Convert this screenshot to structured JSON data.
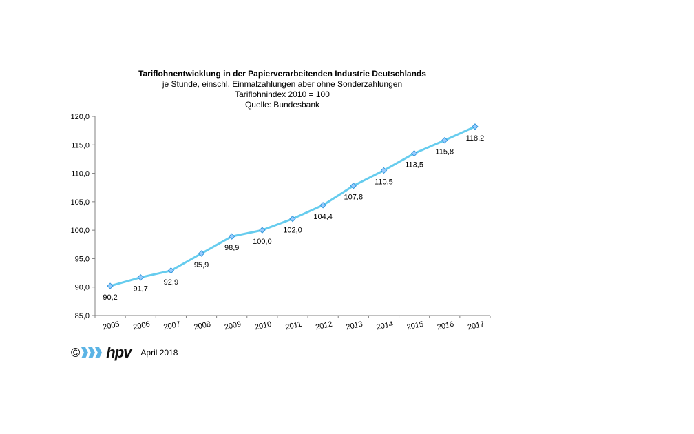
{
  "header": {
    "title": "Tariflohnentwicklung in der Papierverarbeitenden Industrie Deutschlands",
    "subtitle1": "je Stunde, einschl. Einmalzahlungen  aber ohne Sonderzahlungen",
    "subtitle2": "Tariflohnindex  2010  = 100",
    "subtitle3": "Quelle: Bundesbank"
  },
  "chart_data": {
    "type": "line",
    "title": "Tariflohnentwicklung in der Papierverarbeitenden Industrie Deutschlands",
    "categories": [
      "2005",
      "2006",
      "2007",
      "2008",
      "2009",
      "2010",
      "2011",
      "2012",
      "2013",
      "2014",
      "2015",
      "2016",
      "2017"
    ],
    "series": [
      {
        "values": [
          90.2,
          91.7,
          92.9,
          95.9,
          98.9,
          100.0,
          102.0,
          104.4,
          107.8,
          110.5,
          113.5,
          115.8,
          118.2
        ]
      }
    ],
    "data_labels": [
      "90,2",
      "91,7",
      "92,9",
      "95,9",
      "98,9",
      "100,0",
      "102,0",
      "104,4",
      "107,8",
      "110,5",
      "113,5",
      "115,8",
      "118,2"
    ],
    "yticks": [
      85,
      90,
      95,
      100,
      105,
      110,
      115,
      120
    ],
    "ytick_labels": [
      "85,0",
      "90,0",
      "95,0",
      "100,0",
      "105,0",
      "110,0",
      "115,0",
      "120,0"
    ],
    "ylim": [
      85,
      120
    ],
    "xlabel": "",
    "ylabel": "",
    "grid": false,
    "legend": "none",
    "line_color": "#66ccee",
    "marker_fill": "#99ccff",
    "marker_stroke": "#3399dd"
  },
  "footer": {
    "copyright": "©",
    "logo_text": "hpv",
    "date": "April 2018",
    "logo_color": "#5bb4e5"
  }
}
